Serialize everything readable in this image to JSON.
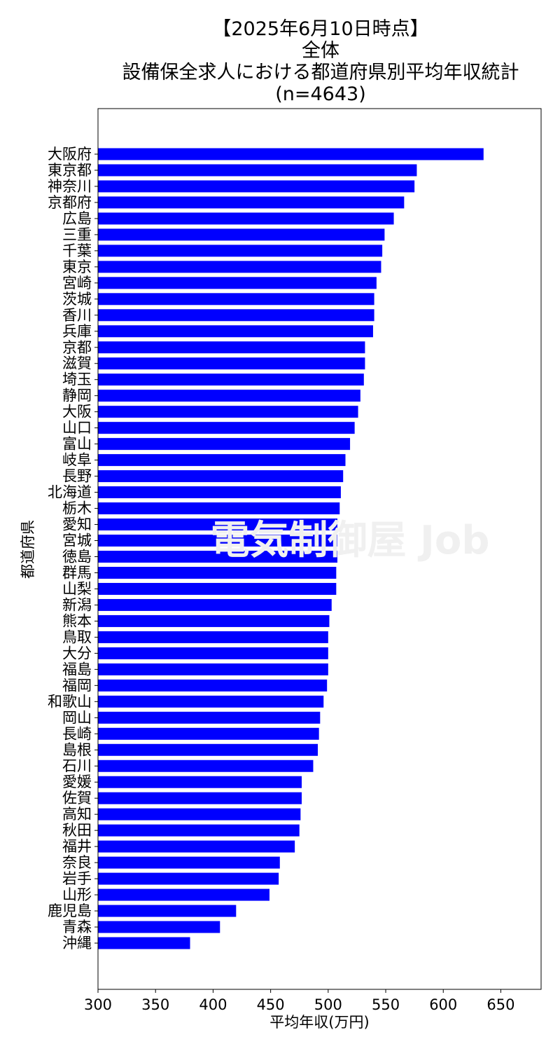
{
  "title_lines": [
    "【2025年6月10日時点】",
    "全体",
    "設備保全求人における都道府県別平均年収統計",
    "(n=4643)"
  ],
  "watermark": "電気制御屋 Job",
  "chart_data": {
    "type": "bar",
    "orientation": "horizontal",
    "xlabel": "平均年収(万円)",
    "ylabel": "都道府県",
    "xlim": [
      300,
      685
    ],
    "xticks": [
      300,
      350,
      400,
      450,
      500,
      550,
      600,
      650
    ],
    "bar_color": "#0000ff",
    "grid": false,
    "categories": [
      "大阪府",
      "東京都",
      "神奈川",
      "京都府",
      "広島",
      "三重",
      "千葉",
      "東京",
      "宮崎",
      "茨城",
      "香川",
      "兵庫",
      "京都",
      "滋賀",
      "埼玉",
      "静岡",
      "大阪",
      "山口",
      "富山",
      "岐阜",
      "長野",
      "北海道",
      "栃木",
      "愛知",
      "宮城",
      "徳島",
      "群馬",
      "山梨",
      "新潟",
      "熊本",
      "鳥取",
      "大分",
      "福島",
      "福岡",
      "和歌山",
      "岡山",
      "長崎",
      "島根",
      "石川",
      "愛媛",
      "佐賀",
      "高知",
      "秋田",
      "福井",
      "奈良",
      "岩手",
      "山形",
      "鹿児島",
      "青森",
      "沖縄"
    ],
    "values": [
      635,
      577,
      575,
      566,
      557,
      549,
      547,
      546,
      542,
      540,
      540,
      539,
      532,
      532,
      531,
      528,
      526,
      523,
      519,
      515,
      513,
      511,
      510,
      508,
      508,
      508,
      507,
      507,
      503,
      501,
      500,
      500,
      500,
      499,
      496,
      493,
      492,
      491,
      487,
      477,
      477,
      476,
      475,
      471,
      458,
      457,
      449,
      420,
      406,
      380
    ]
  }
}
